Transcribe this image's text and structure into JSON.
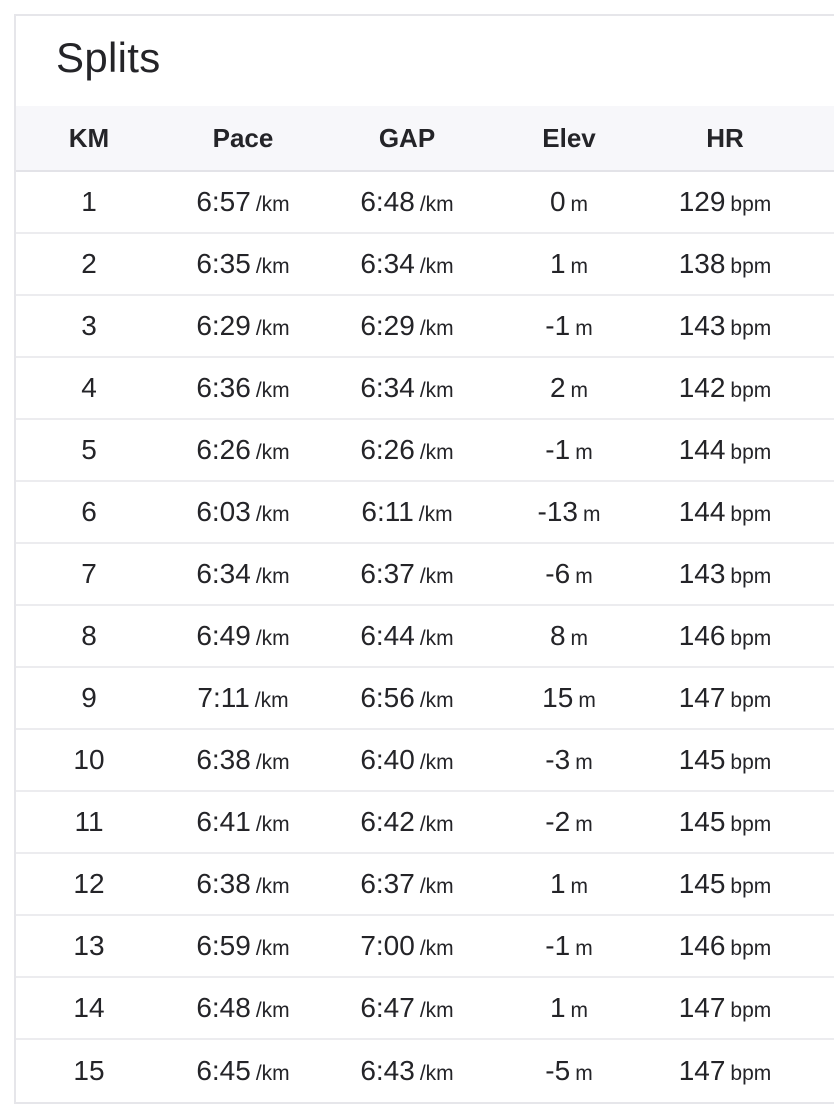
{
  "panel": {
    "title": "Splits"
  },
  "table": {
    "columns": [
      "KM",
      "Pace",
      "GAP",
      "Elev",
      "HR"
    ],
    "units": {
      "pace": "/km",
      "gap": "/km",
      "elev": "m",
      "hr": "bpm"
    },
    "rows": [
      {
        "km": "1",
        "pace": "6:57",
        "gap": "6:48",
        "elev": "0",
        "hr": "129"
      },
      {
        "km": "2",
        "pace": "6:35",
        "gap": "6:34",
        "elev": "1",
        "hr": "138"
      },
      {
        "km": "3",
        "pace": "6:29",
        "gap": "6:29",
        "elev": "-1",
        "hr": "143"
      },
      {
        "km": "4",
        "pace": "6:36",
        "gap": "6:34",
        "elev": "2",
        "hr": "142"
      },
      {
        "km": "5",
        "pace": "6:26",
        "gap": "6:26",
        "elev": "-1",
        "hr": "144"
      },
      {
        "km": "6",
        "pace": "6:03",
        "gap": "6:11",
        "elev": "-13",
        "hr": "144"
      },
      {
        "km": "7",
        "pace": "6:34",
        "gap": "6:37",
        "elev": "-6",
        "hr": "143"
      },
      {
        "km": "8",
        "pace": "6:49",
        "gap": "6:44",
        "elev": "8",
        "hr": "146"
      },
      {
        "km": "9",
        "pace": "7:11",
        "gap": "6:56",
        "elev": "15",
        "hr": "147"
      },
      {
        "km": "10",
        "pace": "6:38",
        "gap": "6:40",
        "elev": "-3",
        "hr": "145"
      },
      {
        "km": "11",
        "pace": "6:41",
        "gap": "6:42",
        "elev": "-2",
        "hr": "145"
      },
      {
        "km": "12",
        "pace": "6:38",
        "gap": "6:37",
        "elev": "1",
        "hr": "145"
      },
      {
        "km": "13",
        "pace": "6:59",
        "gap": "7:00",
        "elev": "-1",
        "hr": "146"
      },
      {
        "km": "14",
        "pace": "6:48",
        "gap": "6:47",
        "elev": "1",
        "hr": "147"
      },
      {
        "km": "15",
        "pace": "6:45",
        "gap": "6:43",
        "elev": "-5",
        "hr": "147"
      }
    ]
  }
}
